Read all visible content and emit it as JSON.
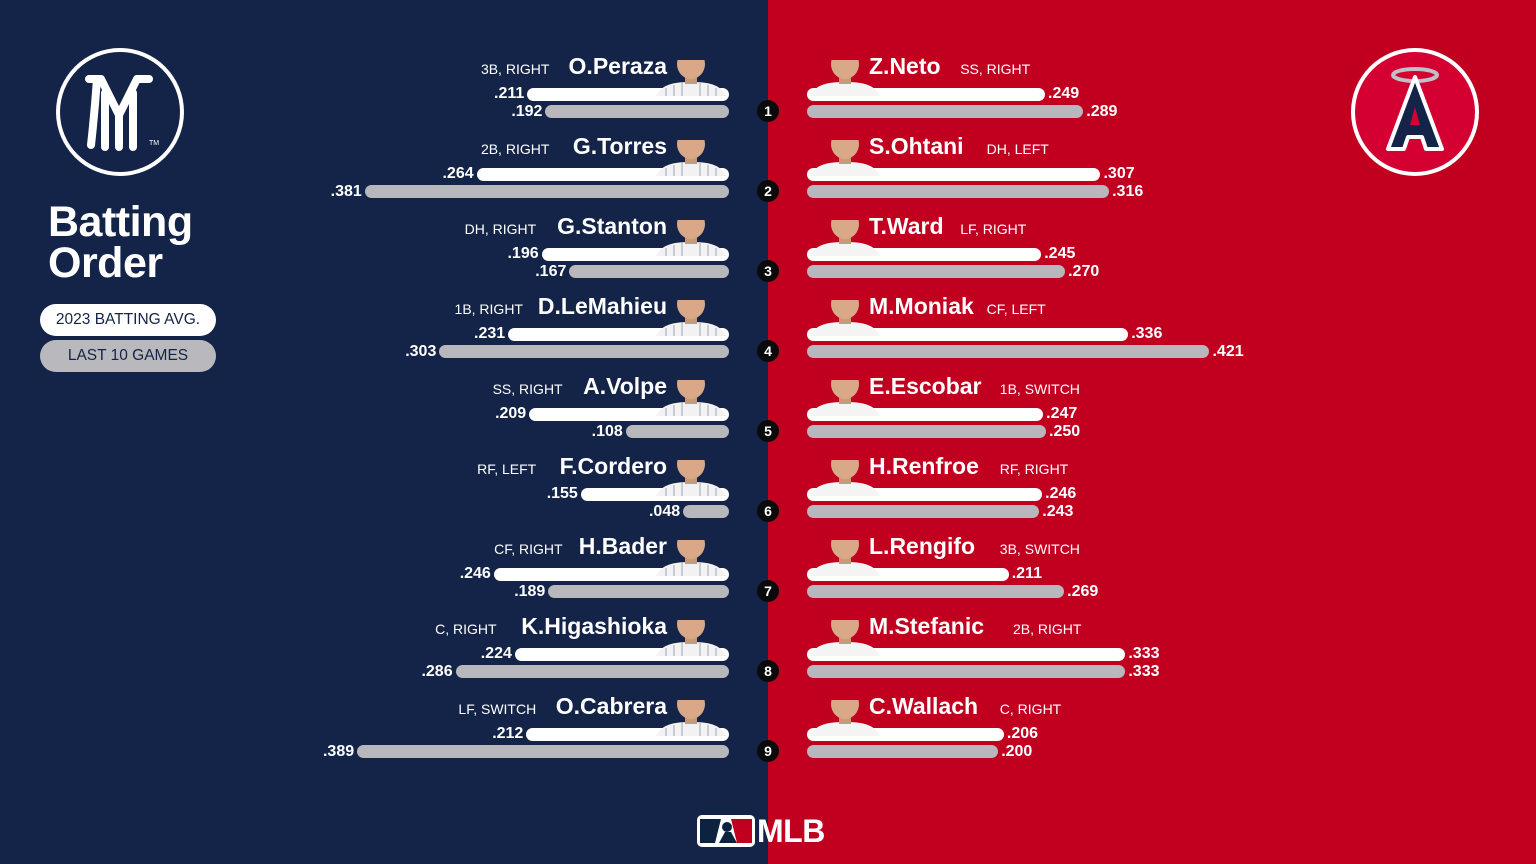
{
  "title": "Batting\nOrder",
  "legend": {
    "season": "2023 BATTING AVG.",
    "last10": "LAST 10 GAMES"
  },
  "brand": "MLB",
  "colors": {
    "yankees_navy": "#132448",
    "angels_red": "#c1001f",
    "season_bar": "#ffffff",
    "last10_bar": "#b8b8bc"
  },
  "chart_data": {
    "type": "bar",
    "orientation": "horizontal",
    "series": [
      {
        "name": "2023 BATTING AVG.",
        "key": "season"
      },
      {
        "name": "LAST 10 GAMES",
        "key": "last10"
      }
    ],
    "teams": [
      {
        "side": "left",
        "logo": "yankees-logo",
        "players": [
          {
            "order": "1",
            "name": "O.Peraza",
            "pos": "3B, RIGHT",
            "season": ".211",
            "last10": ".192"
          },
          {
            "order": "2",
            "name": "G.Torres",
            "pos": "2B, RIGHT",
            "season": ".264",
            "last10": ".381"
          },
          {
            "order": "3",
            "name": "G.Stanton",
            "pos": "DH, RIGHT",
            "season": ".196",
            "last10": ".167"
          },
          {
            "order": "4",
            "name": "D.LeMahieu",
            "pos": "1B, RIGHT",
            "season": ".231",
            "last10": ".303"
          },
          {
            "order": "5",
            "name": "A.Volpe",
            "pos": "SS, RIGHT",
            "season": ".209",
            "last10": ".108"
          },
          {
            "order": "6",
            "name": "F.Cordero",
            "pos": "RF, LEFT",
            "season": ".155",
            "last10": ".048"
          },
          {
            "order": "7",
            "name": "H.Bader",
            "pos": "CF, RIGHT",
            "season": ".246",
            "last10": ".189"
          },
          {
            "order": "8",
            "name": "K.Higashioka",
            "pos": "C, RIGHT",
            "season": ".224",
            "last10": ".286"
          },
          {
            "order": "9",
            "name": "O.Cabrera",
            "pos": "LF, SWITCH",
            "season": ".212",
            "last10": ".389"
          }
        ]
      },
      {
        "side": "right",
        "logo": "angels-logo",
        "players": [
          {
            "order": "1",
            "name": "Z.Neto",
            "pos": "SS, RIGHT",
            "season": ".249",
            "last10": ".289"
          },
          {
            "order": "2",
            "name": "S.Ohtani",
            "pos": "DH, LEFT",
            "season": ".307",
            "last10": ".316"
          },
          {
            "order": "3",
            "name": "T.Ward",
            "pos": "LF, RIGHT",
            "season": ".245",
            "last10": ".270"
          },
          {
            "order": "4",
            "name": "M.Moniak",
            "pos": "CF, LEFT",
            "season": ".336",
            "last10": ".421"
          },
          {
            "order": "5",
            "name": "E.Escobar",
            "pos": "1B, SWITCH",
            "season": ".247",
            "last10": ".250"
          },
          {
            "order": "6",
            "name": "H.Renfroe",
            "pos": "RF, RIGHT",
            "season": ".246",
            "last10": ".243"
          },
          {
            "order": "7",
            "name": "L.Rengifo",
            "pos": "3B, SWITCH",
            "season": ".211",
            "last10": ".269"
          },
          {
            "order": "8",
            "name": "M.Stefanic",
            "pos": "2B, RIGHT",
            "season": ".333",
            "last10": ".333"
          },
          {
            "order": "9",
            "name": "C.Wallach",
            "pos": "C, RIGHT",
            "season": ".206",
            "last10": ".200"
          }
        ]
      }
    ]
  }
}
